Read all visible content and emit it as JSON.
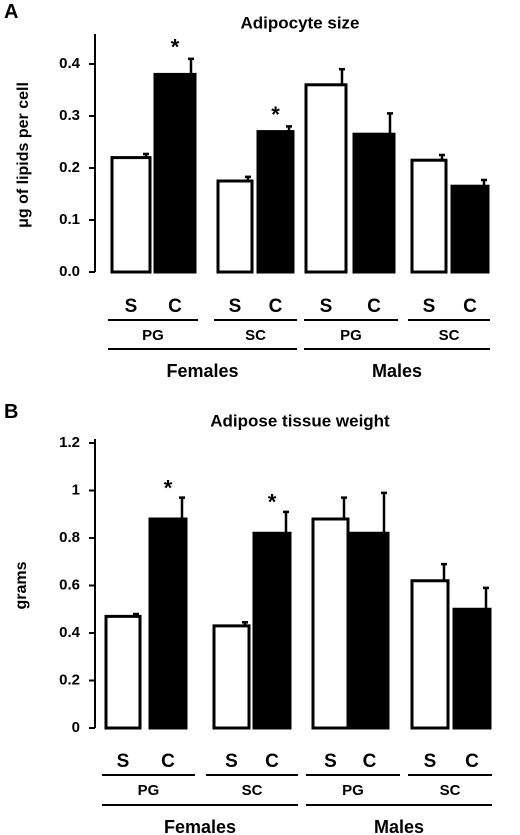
{
  "chart_data": [
    {
      "panel_label": "A",
      "type": "bar",
      "title": "Adipocyte size",
      "ylabel": "μg of lipids per cell",
      "ylim": [
        0,
        0.45
      ],
      "yticks": [
        "0.0",
        "0.1",
        "0.2",
        "0.3",
        "0.4"
      ],
      "ytick_values": [
        0,
        0.1,
        0.2,
        0.3,
        0.4
      ],
      "groups": [
        {
          "sex": "Females",
          "depots": [
            {
              "depot": "PG",
              "bars": [
                {
                  "treatment": "S",
                  "value": 0.22,
                  "error": 0.007,
                  "fill": "white",
                  "significant": false
                },
                {
                  "treatment": "C",
                  "value": 0.38,
                  "error": 0.03,
                  "fill": "black",
                  "significant": true
                }
              ]
            },
            {
              "depot": "SC",
              "bars": [
                {
                  "treatment": "S",
                  "value": 0.175,
                  "error": 0.008,
                  "fill": "white",
                  "significant": false
                },
                {
                  "treatment": "C",
                  "value": 0.27,
                  "error": 0.01,
                  "fill": "black",
                  "significant": true
                }
              ]
            }
          ]
        },
        {
          "sex": "Males",
          "depots": [
            {
              "depot": "PG",
              "bars": [
                {
                  "treatment": "S",
                  "value": 0.36,
                  "error": 0.03,
                  "fill": "white",
                  "significant": false
                },
                {
                  "treatment": "C",
                  "value": 0.265,
                  "error": 0.04,
                  "fill": "black",
                  "significant": false
                }
              ]
            },
            {
              "depot": "SC",
              "bars": [
                {
                  "treatment": "S",
                  "value": 0.215,
                  "error": 0.01,
                  "fill": "white",
                  "significant": false
                },
                {
                  "treatment": "C",
                  "value": 0.165,
                  "error": 0.012,
                  "fill": "black",
                  "significant": false
                }
              ]
            }
          ]
        }
      ],
      "significance_marker": "*"
    },
    {
      "panel_label": "B",
      "type": "bar",
      "title": "Adipose tissue weight",
      "ylabel": "grams",
      "ylim": [
        0,
        1.2
      ],
      "yticks": [
        "0",
        "0.2",
        "0.4",
        "0.6",
        "0.8",
        "1",
        "1.2"
      ],
      "ytick_values": [
        0,
        0.2,
        0.4,
        0.6,
        0.8,
        1.0,
        1.2
      ],
      "groups": [
        {
          "sex": "Females",
          "depots": [
            {
              "depot": "PG",
              "bars": [
                {
                  "treatment": "S",
                  "value": 0.47,
                  "error": 0.01,
                  "fill": "white",
                  "significant": false
                },
                {
                  "treatment": "C",
                  "value": 0.88,
                  "error": 0.09,
                  "fill": "black",
                  "significant": true
                }
              ]
            },
            {
              "depot": "SC",
              "bars": [
                {
                  "treatment": "S",
                  "value": 0.43,
                  "error": 0.015,
                  "fill": "white",
                  "significant": false
                },
                {
                  "treatment": "C",
                  "value": 0.82,
                  "error": 0.09,
                  "fill": "black",
                  "significant": true
                }
              ]
            }
          ]
        },
        {
          "sex": "Males",
          "depots": [
            {
              "depot": "PG",
              "bars": [
                {
                  "treatment": "S",
                  "value": 0.88,
                  "error": 0.09,
                  "fill": "white",
                  "significant": false
                },
                {
                  "treatment": "C",
                  "value": 0.82,
                  "error": 0.17,
                  "fill": "black",
                  "significant": false
                }
              ]
            },
            {
              "depot": "SC",
              "bars": [
                {
                  "treatment": "S",
                  "value": 0.62,
                  "error": 0.07,
                  "fill": "white",
                  "significant": false
                },
                {
                  "treatment": "C",
                  "value": 0.5,
                  "error": 0.09,
                  "fill": "black",
                  "significant": false
                }
              ]
            }
          ]
        }
      ],
      "significance_marker": "*"
    }
  ]
}
